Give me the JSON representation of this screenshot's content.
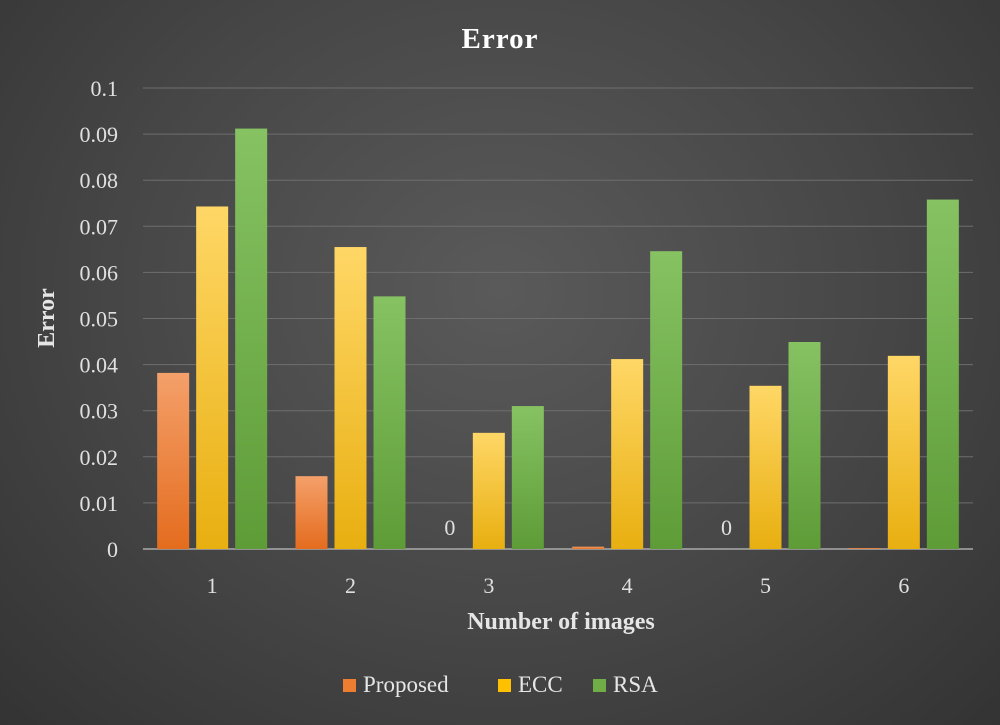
{
  "chart_data": {
    "type": "bar",
    "title": "Error",
    "xlabel": "Number of images",
    "ylabel": "Error",
    "categories": [
      "1",
      "2",
      "3",
      "4",
      "5",
      "6"
    ],
    "ylim": [
      0,
      0.1
    ],
    "yticks": [
      "0",
      "0.01",
      "0.02",
      "0.03",
      "0.04",
      "0.05",
      "0.06",
      "0.07",
      "0.08",
      "0.09",
      "0.1"
    ],
    "grid": true,
    "legend_position": "bottom",
    "series": [
      {
        "name": "Proposed",
        "color": "#ed7d31",
        "values": [
          0.0382,
          0.0158,
          0,
          0.0005,
          0,
          0.0002
        ]
      },
      {
        "name": "ECC",
        "color": "#ffc000",
        "values": [
          0.0743,
          0.0655,
          0.0252,
          0.0412,
          0.0354,
          0.0419
        ]
      },
      {
        "name": "RSA",
        "color": "#70ad47",
        "values": [
          0.0912,
          0.0548,
          0.031,
          0.0646,
          0.0449,
          0.0758
        ]
      }
    ],
    "data_labels": [
      {
        "series": 0,
        "category": 2,
        "text": "0"
      },
      {
        "series": 0,
        "category": 4,
        "text": "0"
      }
    ]
  }
}
